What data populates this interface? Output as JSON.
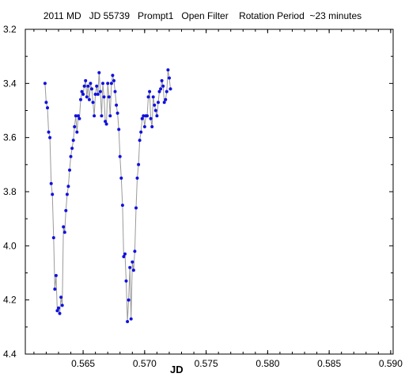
{
  "chart_data": {
    "type": "scatter",
    "title": "2011 MD   JD 55739   Prompt1   Open Filter    Rotation Period  ~23 minutes",
    "xlabel": "JD",
    "ylabel": "",
    "xlim": [
      0.5603,
      0.5902
    ],
    "ylim": [
      4.4,
      3.2
    ],
    "y_inverted": true,
    "x_ticks": [
      "0.565",
      "0.570",
      "0.575",
      "0.580",
      "0.585",
      "0.590"
    ],
    "y_ticks": [
      "3.2",
      "3.4",
      "3.6",
      "3.8",
      "4.0",
      "4.2",
      "4.4"
    ],
    "grid": false,
    "connect_points": true,
    "colors": {
      "points": "#1010e0",
      "line": "#9a9a9a",
      "axes": "#000000"
    },
    "series": [
      {
        "name": "",
        "points": [
          [
            0.5619,
            3.4
          ],
          [
            0.562,
            3.47
          ],
          [
            0.5621,
            3.49
          ],
          [
            0.5622,
            3.58
          ],
          [
            0.5623,
            3.6
          ],
          [
            0.5624,
            3.77
          ],
          [
            0.5625,
            3.81
          ],
          [
            0.5626,
            3.97
          ],
          [
            0.5627,
            4.16
          ],
          [
            0.5628,
            4.11
          ],
          [
            0.5629,
            4.24
          ],
          [
            0.563,
            4.23
          ],
          [
            0.5631,
            4.25
          ],
          [
            0.5632,
            4.19
          ],
          [
            0.5633,
            4.22
          ],
          [
            0.5634,
            3.93
          ],
          [
            0.5635,
            3.95
          ],
          [
            0.5636,
            3.87
          ],
          [
            0.5637,
            3.81
          ],
          [
            0.5638,
            3.78
          ],
          [
            0.5639,
            3.72
          ],
          [
            0.564,
            3.67
          ],
          [
            0.5641,
            3.64
          ],
          [
            0.5642,
            3.61
          ],
          [
            0.5643,
            3.56
          ],
          [
            0.5644,
            3.52
          ],
          [
            0.5645,
            3.58
          ],
          [
            0.5646,
            3.52
          ],
          [
            0.5647,
            3.53
          ],
          [
            0.5648,
            3.46
          ],
          [
            0.5649,
            3.43
          ],
          [
            0.565,
            3.44
          ],
          [
            0.5651,
            3.41
          ],
          [
            0.5652,
            3.39
          ],
          [
            0.5653,
            3.45
          ],
          [
            0.5654,
            3.41
          ],
          [
            0.5655,
            3.46
          ],
          [
            0.5656,
            3.4
          ],
          [
            0.5657,
            3.42
          ],
          [
            0.5658,
            3.47
          ],
          [
            0.5659,
            3.52
          ],
          [
            0.566,
            3.44
          ],
          [
            0.5661,
            3.41
          ],
          [
            0.5662,
            3.44
          ],
          [
            0.5663,
            3.36
          ],
          [
            0.5664,
            3.43
          ],
          [
            0.5665,
            3.52
          ],
          [
            0.5666,
            3.4
          ],
          [
            0.5667,
            3.45
          ],
          [
            0.5668,
            3.54
          ],
          [
            0.5669,
            3.55
          ],
          [
            0.567,
            3.4
          ],
          [
            0.5671,
            3.45
          ],
          [
            0.5672,
            3.52
          ],
          [
            0.5673,
            3.4
          ],
          [
            0.5674,
            3.37
          ],
          [
            0.5675,
            3.39
          ],
          [
            0.5676,
            3.43
          ],
          [
            0.5677,
            3.48
          ],
          [
            0.5678,
            3.51
          ],
          [
            0.5679,
            3.57
          ],
          [
            0.568,
            3.67
          ],
          [
            0.5681,
            3.75
          ],
          [
            0.5682,
            3.85
          ],
          [
            0.5683,
            4.04
          ],
          [
            0.5684,
            4.03
          ],
          [
            0.5685,
            4.13
          ],
          [
            0.5686,
            4.28
          ],
          [
            0.5687,
            4.2
          ],
          [
            0.5688,
            4.08
          ],
          [
            0.5689,
            4.27
          ],
          [
            0.569,
            4.06
          ],
          [
            0.5691,
            4.09
          ],
          [
            0.5692,
            4.02
          ],
          [
            0.5693,
            3.86
          ],
          [
            0.5694,
            3.75
          ],
          [
            0.5695,
            3.7
          ],
          [
            0.5696,
            3.61
          ],
          [
            0.5697,
            3.58
          ],
          [
            0.5698,
            3.53
          ],
          [
            0.5699,
            3.52
          ],
          [
            0.57,
            3.56
          ],
          [
            0.5701,
            3.52
          ],
          [
            0.5702,
            3.52
          ],
          [
            0.5703,
            3.45
          ],
          [
            0.5704,
            3.43
          ],
          [
            0.5705,
            3.53
          ],
          [
            0.5706,
            3.56
          ],
          [
            0.5707,
            3.45
          ],
          [
            0.5708,
            3.48
          ],
          [
            0.5709,
            3.5
          ],
          [
            0.571,
            3.52
          ],
          [
            0.5711,
            3.47
          ],
          [
            0.5712,
            3.43
          ],
          [
            0.5713,
            3.42
          ],
          [
            0.5714,
            3.39
          ],
          [
            0.5715,
            3.41
          ],
          [
            0.5716,
            3.47
          ],
          [
            0.5717,
            3.46
          ],
          [
            0.5718,
            3.43
          ],
          [
            0.5719,
            3.35
          ],
          [
            0.572,
            3.38
          ],
          [
            0.5721,
            3.42
          ]
        ]
      }
    ]
  }
}
